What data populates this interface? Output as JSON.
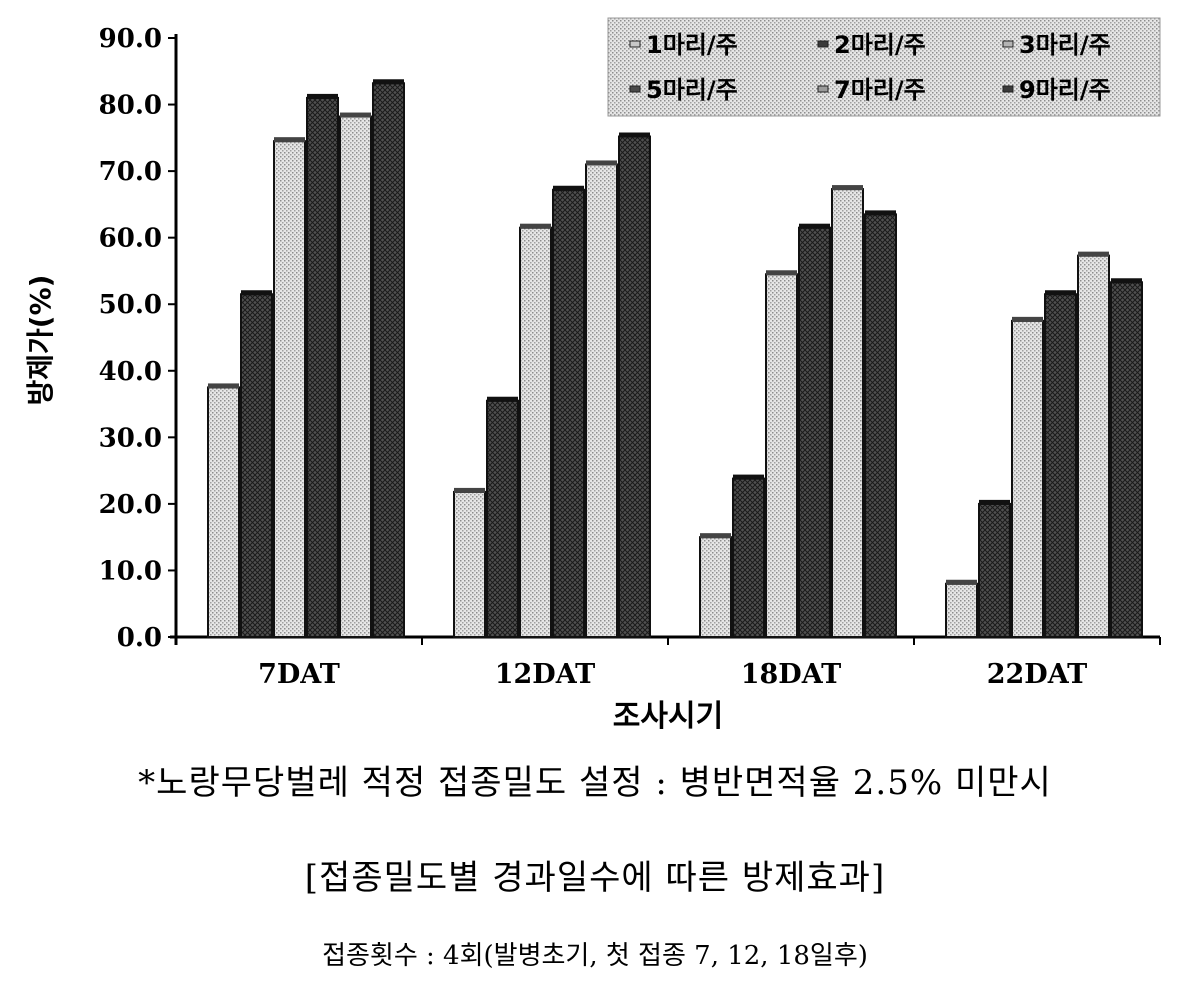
{
  "chart_data": {
    "type": "bar",
    "title": "",
    "xlabel": "조사시기",
    "ylabel": "방제가(%)",
    "ylim": [
      0,
      90
    ],
    "yticks": [
      "0.0",
      "10.0",
      "20.0",
      "30.0",
      "40.0",
      "50.0",
      "60.0",
      "70.0",
      "80.0",
      "90.0"
    ],
    "categories": [
      "7DAT",
      "12DAT",
      "18DAT",
      "22DAT"
    ],
    "grid": false,
    "legend_position": "top-right",
    "series": [
      {
        "name": "1마리/주",
        "values": [
          37.5,
          21.8,
          15.0,
          8.0
        ],
        "color": "#c8c8c8"
      },
      {
        "name": "2마리/주",
        "values": [
          51.5,
          35.5,
          23.8,
          20.0
        ],
        "color": "#3a3a3a"
      },
      {
        "name": "3마리/주",
        "values": [
          74.5,
          61.5,
          54.5,
          47.5
        ],
        "color": "#b4b4b4"
      },
      {
        "name": "5마리/주",
        "values": [
          81.0,
          67.2,
          61.5,
          51.5
        ],
        "color": "#4a4a4a"
      },
      {
        "name": "7마리/주",
        "values": [
          78.2,
          71.0,
          67.3,
          57.3
        ],
        "color": "#9a9a9a"
      },
      {
        "name": "9마리/주",
        "values": [
          83.2,
          75.2,
          63.5,
          53.3
        ],
        "color": "#3a3a3a"
      }
    ]
  },
  "notes": {
    "footnote": "*노랑무당벌레 적정 접종밀도 설정 : 병반면적율 2.5% 미만시",
    "caption": "[접종밀도별 경과일수에 따른 방제효과]",
    "subcaption": "접종횟수 : 4회(발병초기, 첫 접종 7, 12, 18일후)"
  }
}
